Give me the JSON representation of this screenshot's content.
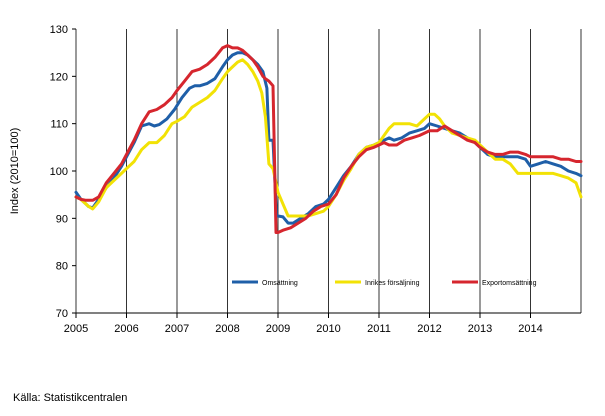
{
  "chart_data": {
    "type": "line",
    "ylabel": "Index (2010=100)",
    "ylim": [
      70,
      130
    ],
    "y_ticks": [
      70,
      80,
      90,
      100,
      110,
      120,
      130
    ],
    "x_start": 2005,
    "x_end": 2015,
    "x_ticks": [
      "2005",
      "2006",
      "2007",
      "2008",
      "2009",
      "2010",
      "2011",
      "2012",
      "2013",
      "2014"
    ],
    "grid": "vertical",
    "legend_position": "bottom-center",
    "series": [
      {
        "name": "Omsättning",
        "color": "#1f5fa8",
        "x": [
          2005.0,
          2005.1,
          2005.25,
          2005.33,
          2005.45,
          2005.6,
          2005.75,
          2005.9,
          2006.0,
          2006.15,
          2006.3,
          2006.45,
          2006.55,
          2006.65,
          2006.8,
          2006.95,
          2007.1,
          2007.25,
          2007.35,
          2007.45,
          2007.6,
          2007.75,
          2007.9,
          2008.0,
          2008.1,
          2008.2,
          2008.3,
          2008.4,
          2008.5,
          2008.6,
          2008.7,
          2008.78,
          2008.82,
          2008.9,
          2008.97,
          2009.0,
          2009.1,
          2009.2,
          2009.3,
          2009.45,
          2009.6,
          2009.75,
          2009.9,
          2010.0,
          2010.15,
          2010.3,
          2010.45,
          2010.6,
          2010.75,
          2010.9,
          2011.0,
          2011.1,
          2011.2,
          2011.3,
          2011.45,
          2011.6,
          2011.75,
          2011.9,
          2012.0,
          2012.15,
          2012.3,
          2012.45,
          2012.6,
          2012.75,
          2012.9,
          2013.0,
          2013.15,
          2013.3,
          2013.45,
          2013.6,
          2013.75,
          2013.9,
          2014.0,
          2014.15,
          2014.3,
          2014.45,
          2014.6,
          2014.75,
          2014.9,
          2015.0
        ],
        "values": [
          95.5,
          94.0,
          92.5,
          92.2,
          94.0,
          96.5,
          98.5,
          101.0,
          103.0,
          106.0,
          109.5,
          110.0,
          109.5,
          109.8,
          111.0,
          113.0,
          115.5,
          117.5,
          118.0,
          118.0,
          118.5,
          119.5,
          122.0,
          123.5,
          124.5,
          125.0,
          125.0,
          124.5,
          123.5,
          122.5,
          121.0,
          117.5,
          106.5,
          106.5,
          90.5,
          90.5,
          90.3,
          89.0,
          89.0,
          90.0,
          91.0,
          92.5,
          93.0,
          94.0,
          96.5,
          99.0,
          101.0,
          103.5,
          105.0,
          105.5,
          106.0,
          106.5,
          107.0,
          106.5,
          107.0,
          108.0,
          108.5,
          109.0,
          110.0,
          109.5,
          109.0,
          108.5,
          108.0,
          107.0,
          106.0,
          105.0,
          103.5,
          103.0,
          103.0,
          103.0,
          103.0,
          102.5,
          101.0,
          101.5,
          102.0,
          101.5,
          101.0,
          100.0,
          99.5,
          99.0
        ]
      },
      {
        "name": "Inrikes försäljning",
        "color": "#f2e205",
        "x": [
          2005.0,
          2005.1,
          2005.25,
          2005.33,
          2005.45,
          2005.6,
          2005.75,
          2005.9,
          2006.0,
          2006.15,
          2006.3,
          2006.45,
          2006.6,
          2006.75,
          2006.9,
          2007.0,
          2007.15,
          2007.3,
          2007.45,
          2007.6,
          2007.75,
          2007.9,
          2008.0,
          2008.1,
          2008.2,
          2008.3,
          2008.4,
          2008.5,
          2008.6,
          2008.68,
          2008.75,
          2008.82,
          2008.9,
          2008.97,
          2009.0,
          2009.1,
          2009.2,
          2009.3,
          2009.45,
          2009.6,
          2009.75,
          2009.9,
          2010.0,
          2010.15,
          2010.3,
          2010.45,
          2010.6,
          2010.75,
          2010.9,
          2011.0,
          2011.1,
          2011.2,
          2011.3,
          2011.45,
          2011.6,
          2011.75,
          2011.9,
          2012.0,
          2012.1,
          2012.2,
          2012.3,
          2012.45,
          2012.6,
          2012.75,
          2012.9,
          2013.0,
          2013.15,
          2013.3,
          2013.45,
          2013.6,
          2013.75,
          2013.9,
          2014.0,
          2014.15,
          2014.3,
          2014.45,
          2014.6,
          2014.75,
          2014.9,
          2015.0
        ],
        "values": [
          94.5,
          94.0,
          92.5,
          92.0,
          93.5,
          96.5,
          98.0,
          99.5,
          100.5,
          102.0,
          104.5,
          106.0,
          106.0,
          107.5,
          110.0,
          110.5,
          111.5,
          113.5,
          114.5,
          115.5,
          117.0,
          119.5,
          121.0,
          122.0,
          123.0,
          123.5,
          122.5,
          121.0,
          119.0,
          116.5,
          111.5,
          101.5,
          100.5,
          97.0,
          95.5,
          93.0,
          90.5,
          90.5,
          90.5,
          90.5,
          91.0,
          91.5,
          92.5,
          95.0,
          98.0,
          100.5,
          103.5,
          105.0,
          105.5,
          106.0,
          107.5,
          109.0,
          110.0,
          110.0,
          110.0,
          109.5,
          111.0,
          112.0,
          112.0,
          111.0,
          109.5,
          108.0,
          107.5,
          107.0,
          106.5,
          105.5,
          104.0,
          102.5,
          102.5,
          101.5,
          99.5,
          99.5,
          99.5,
          99.5,
          99.5,
          99.5,
          99.0,
          98.5,
          97.5,
          94.5
        ]
      },
      {
        "name": "Exportomsättning",
        "color": "#d6262e",
        "x": [
          2005.0,
          2005.1,
          2005.2,
          2005.33,
          2005.45,
          2005.6,
          2005.75,
          2005.9,
          2006.0,
          2006.15,
          2006.3,
          2006.45,
          2006.6,
          2006.75,
          2006.9,
          2007.0,
          2007.15,
          2007.3,
          2007.45,
          2007.6,
          2007.75,
          2007.9,
          2008.0,
          2008.1,
          2008.2,
          2008.3,
          2008.4,
          2008.5,
          2008.6,
          2008.7,
          2008.75,
          2008.82,
          2008.9,
          2008.96,
          2009.0,
          2009.1,
          2009.25,
          2009.4,
          2009.55,
          2009.7,
          2009.85,
          2010.0,
          2010.15,
          2010.3,
          2010.45,
          2010.6,
          2010.75,
          2010.9,
          2011.0,
          2011.1,
          2011.2,
          2011.35,
          2011.5,
          2011.65,
          2011.8,
          2011.9,
          2012.0,
          2012.15,
          2012.3,
          2012.45,
          2012.6,
          2012.75,
          2012.9,
          2013.0,
          2013.15,
          2013.3,
          2013.45,
          2013.6,
          2013.75,
          2013.9,
          2014.0,
          2014.15,
          2014.3,
          2014.45,
          2014.6,
          2014.75,
          2014.9,
          2015.0
        ],
        "values": [
          94.5,
          94.0,
          93.8,
          93.8,
          94.5,
          97.5,
          99.5,
          101.5,
          103.5,
          106.5,
          110.0,
          112.5,
          113.0,
          114.0,
          115.5,
          117.0,
          119.0,
          121.0,
          121.5,
          122.5,
          124.0,
          126.0,
          126.5,
          126.0,
          126.0,
          125.5,
          124.5,
          123.5,
          122.0,
          120.0,
          119.5,
          119.0,
          118.0,
          87.0,
          87.0,
          87.5,
          88.0,
          89.0,
          90.0,
          91.5,
          92.5,
          93.0,
          95.0,
          98.5,
          101.0,
          103.0,
          104.5,
          105.0,
          105.5,
          106.0,
          105.5,
          105.5,
          106.5,
          107.0,
          107.5,
          108.0,
          108.5,
          108.5,
          109.5,
          108.5,
          107.5,
          106.5,
          106.0,
          105.0,
          104.0,
          103.5,
          103.5,
          104.0,
          104.0,
          103.5,
          103.0,
          103.0,
          103.0,
          103.0,
          102.5,
          102.5,
          102.0,
          102.0
        ]
      }
    ],
    "source": "Källa: Statistikcentralen"
  }
}
